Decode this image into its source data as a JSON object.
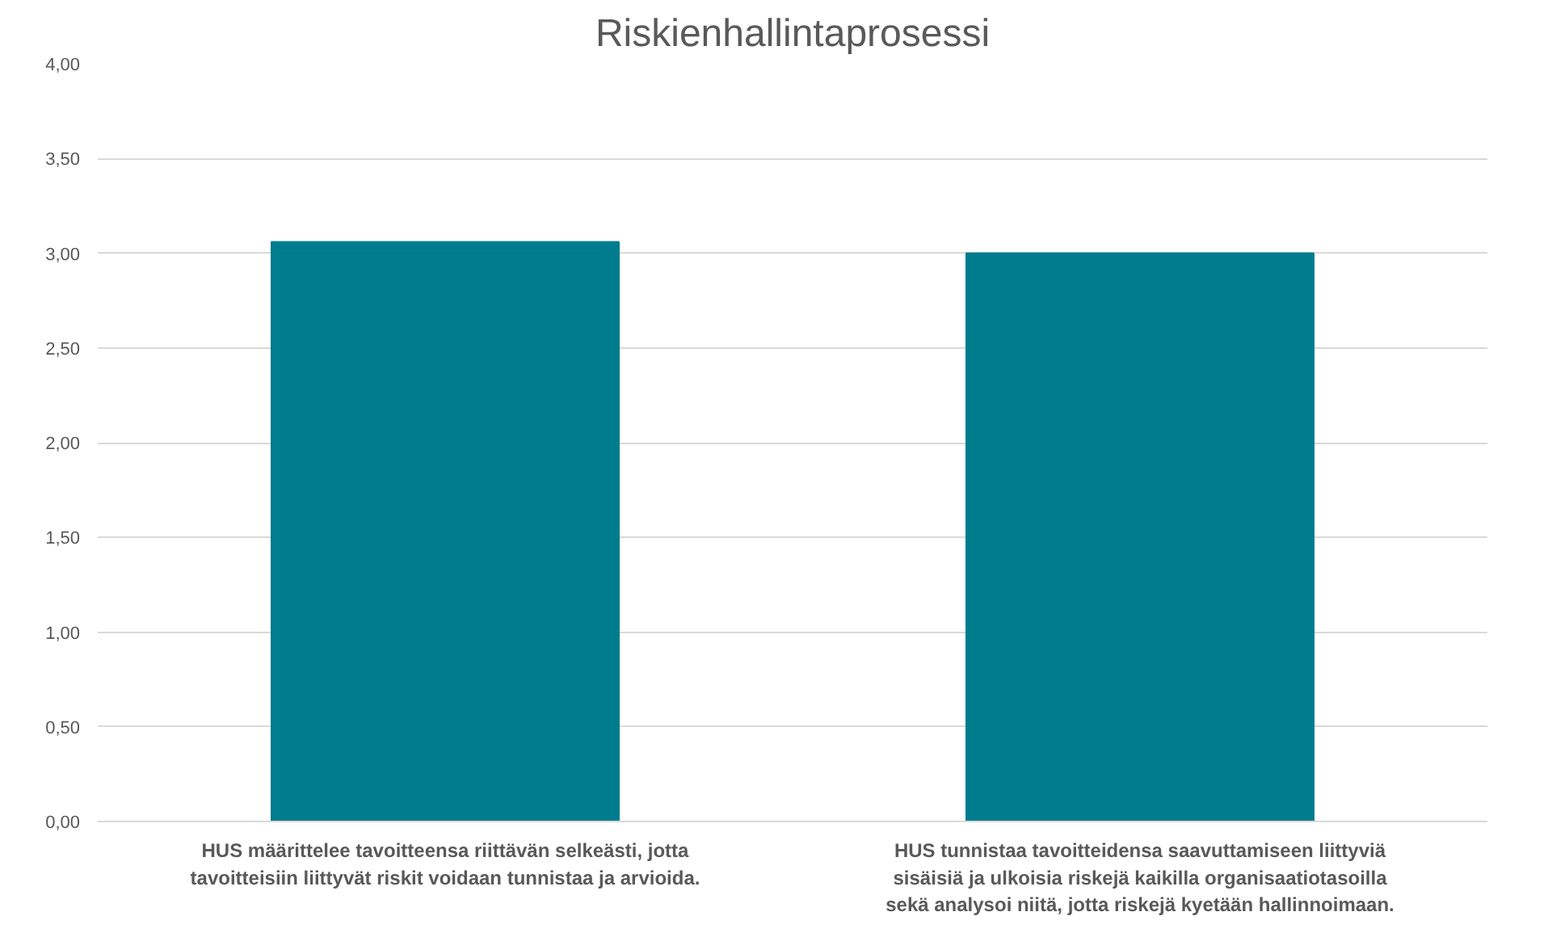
{
  "chart_data": {
    "type": "bar",
    "title": "Riskienhallintaprosessi",
    "categories": [
      "HUS määrittelee tavoitteensa riittävän selkeästi, jotta\ntavoitteisiin liittyvät riskit voidaan tunnistaa ja arvioida.",
      "HUS tunnistaa tavoitteidensa saavuttamiseen liittyviä\nsisäisiä ja ulkoisia riskejä kaikilla organisaatiotasoilla\nsekä analysoi niitä, jotta riskejä kyetään hallinnoimaan."
    ],
    "values": [
      3.06,
      3.0
    ],
    "color": "#007c8f",
    "ylim": [
      0,
      4
    ],
    "yticks": [
      {
        "value": 0,
        "label": "0,00"
      },
      {
        "value": 0.5,
        "label": "0,50"
      },
      {
        "value": 1,
        "label": "1,00"
      },
      {
        "value": 1.5,
        "label": "1,50"
      },
      {
        "value": 2,
        "label": "2,00"
      },
      {
        "value": 2.5,
        "label": "2,50"
      },
      {
        "value": 3,
        "label": "3,00"
      },
      {
        "value": 3.5,
        "label": "3,50"
      },
      {
        "value": 4,
        "label": "4,00"
      }
    ],
    "grid": "y"
  }
}
